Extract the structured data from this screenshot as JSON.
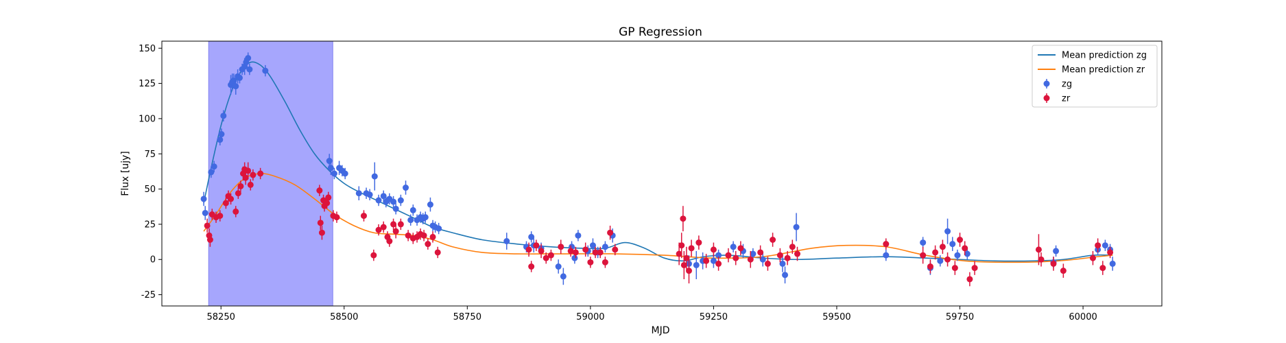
{
  "chart_data": {
    "type": "scatter",
    "title": "GP Regression",
    "xlabel": "MJD",
    "ylabel": "Flux [ujy]",
    "xlim": [
      58130,
      60160
    ],
    "ylim": [
      -33,
      155
    ],
    "x_ticks": [
      58250,
      58500,
      58750,
      59000,
      59250,
      59500,
      59750,
      60000
    ],
    "y_ticks": [
      -25,
      0,
      25,
      50,
      75,
      100,
      125,
      150
    ],
    "grid": false,
    "legend_position": "top-right",
    "shaded_region": {
      "x_start": 58225,
      "x_end": 58477,
      "color": "#a6a6fd"
    },
    "lines": [
      {
        "name": "Mean prediction zg",
        "color": "#1f77b4",
        "x": [
          58215,
          58230,
          58250,
          58270,
          58290,
          58310,
          58330,
          58350,
          58380,
          58410,
          58440,
          58470,
          58500,
          58530,
          58560,
          58590,
          58620,
          58650,
          58680,
          58720,
          58780,
          58850,
          58920,
          58980,
          59030,
          59070,
          59110,
          59150,
          59190,
          59230,
          59280,
          59350,
          59420,
          59500,
          59600,
          59680,
          59750,
          59820,
          59900,
          59960,
          60020,
          60060
        ],
        "y": [
          40,
          65,
          95,
          118,
          133,
          140,
          138,
          130,
          112,
          92,
          75,
          63,
          54,
          48,
          43,
          38,
          33,
          28,
          23,
          19,
          14,
          11,
          9,
          8,
          8,
          12,
          8,
          1,
          -1,
          2,
          3,
          1,
          0,
          1,
          2,
          1,
          0,
          -1,
          -1,
          0,
          3,
          3
        ]
      },
      {
        "name": "Mean prediction zr",
        "color": "#ff7f0e",
        "x": [
          58215,
          58240,
          58270,
          58300,
          58330,
          58360,
          58400,
          58440,
          58480,
          58520,
          58560,
          58600,
          58640,
          58680,
          58720,
          58780,
          58850,
          58950,
          59050,
          59150,
          59250,
          59350,
          59450,
          59520,
          59600,
          59680,
          59760,
          59850,
          59950,
          60030,
          60060
        ],
        "y": [
          20,
          32,
          48,
          58,
          61,
          59,
          53,
          43,
          32,
          24,
          19,
          18,
          17,
          14,
          9,
          5,
          4,
          4,
          4,
          3,
          1,
          2,
          8,
          10,
          9,
          3,
          -1,
          -2,
          -1,
          2,
          3
        ]
      }
    ],
    "series": [
      {
        "name": "zg",
        "color": "#4169e1",
        "points": [
          [
            58215,
            43,
            5
          ],
          [
            58218,
            33,
            5
          ],
          [
            58230,
            62,
            4
          ],
          [
            58236,
            66,
            4
          ],
          [
            58248,
            85,
            4
          ],
          [
            58251,
            89,
            4
          ],
          [
            58255,
            102,
            4
          ],
          [
            58270,
            124,
            7
          ],
          [
            58273,
            126,
            6
          ],
          [
            58276,
            127,
            5
          ],
          [
            58280,
            123,
            6
          ],
          [
            58284,
            130,
            5
          ],
          [
            58288,
            129,
            4
          ],
          [
            58293,
            135,
            4
          ],
          [
            58298,
            137,
            6
          ],
          [
            58301,
            140,
            4
          ],
          [
            58305,
            143,
            4
          ],
          [
            58308,
            135,
            4
          ],
          [
            58340,
            134,
            4
          ],
          [
            58470,
            70,
            5
          ],
          [
            58473,
            65,
            5
          ],
          [
            58480,
            61,
            4
          ],
          [
            58490,
            65,
            5
          ],
          [
            58496,
            63,
            4
          ],
          [
            58502,
            61,
            4
          ],
          [
            58530,
            47,
            5
          ],
          [
            58545,
            47,
            4
          ],
          [
            58552,
            46,
            4
          ],
          [
            58562,
            59,
            10
          ],
          [
            58570,
            42,
            4
          ],
          [
            58580,
            45,
            4
          ],
          [
            58585,
            41,
            4
          ],
          [
            58592,
            43,
            4
          ],
          [
            58600,
            41,
            4
          ],
          [
            58605,
            36,
            4
          ],
          [
            58615,
            42,
            4
          ],
          [
            58625,
            51,
            5
          ],
          [
            58635,
            28,
            4
          ],
          [
            58640,
            35,
            4
          ],
          [
            58648,
            28,
            4
          ],
          [
            58655,
            30,
            4
          ],
          [
            58660,
            29,
            4
          ],
          [
            58665,
            30,
            4
          ],
          [
            58675,
            39,
            5
          ],
          [
            58680,
            24,
            4
          ],
          [
            58685,
            23,
            4
          ],
          [
            58692,
            22,
            4
          ],
          [
            58830,
            13,
            6
          ],
          [
            58870,
            9,
            4
          ],
          [
            58880,
            16,
            4
          ],
          [
            58885,
            10,
            5
          ],
          [
            58900,
            8,
            4
          ],
          [
            58935,
            -5,
            5
          ],
          [
            58945,
            -12,
            6
          ],
          [
            58962,
            9,
            4
          ],
          [
            58968,
            1,
            4
          ],
          [
            58975,
            17,
            4
          ],
          [
            58995,
            6,
            4
          ],
          [
            59005,
            10,
            5
          ],
          [
            59015,
            5,
            4
          ],
          [
            59030,
            9,
            4
          ],
          [
            59045,
            17,
            5
          ],
          [
            59200,
            -3,
            6
          ],
          [
            59215,
            -4,
            10
          ],
          [
            59228,
            -1,
            6
          ],
          [
            59250,
            -1,
            5
          ],
          [
            59260,
            3,
            4
          ],
          [
            59290,
            9,
            4
          ],
          [
            59310,
            6,
            5
          ],
          [
            59330,
            4,
            4
          ],
          [
            59350,
            0,
            5
          ],
          [
            59390,
            -3,
            6
          ],
          [
            59395,
            -11,
            6
          ],
          [
            59418,
            23,
            10
          ],
          [
            59600,
            3,
            4
          ],
          [
            59675,
            12,
            4
          ],
          [
            59690,
            -6,
            5
          ],
          [
            59710,
            -1,
            4
          ],
          [
            59725,
            20,
            9
          ],
          [
            59735,
            11,
            5
          ],
          [
            59745,
            3,
            4
          ],
          [
            59765,
            4,
            4
          ],
          [
            59940,
            -2,
            4
          ],
          [
            59945,
            6,
            4
          ],
          [
            60030,
            7,
            4
          ],
          [
            60045,
            10,
            4
          ],
          [
            60055,
            7,
            4
          ],
          [
            60060,
            -3,
            5
          ]
        ]
      },
      {
        "name": "zr",
        "color": "#dc143c",
        "points": [
          [
            58222,
            24,
            5
          ],
          [
            58226,
            17,
            5
          ],
          [
            58228,
            14,
            5
          ],
          [
            58232,
            32,
            4
          ],
          [
            58240,
            30,
            4
          ],
          [
            58248,
            31,
            4
          ],
          [
            58260,
            40,
            4
          ],
          [
            58265,
            45,
            4
          ],
          [
            58270,
            43,
            4
          ],
          [
            58280,
            34,
            4
          ],
          [
            58285,
            47,
            4
          ],
          [
            58290,
            52,
            4
          ],
          [
            58295,
            61,
            5
          ],
          [
            58298,
            64,
            5
          ],
          [
            58300,
            58,
            5
          ],
          [
            58305,
            63,
            6
          ],
          [
            58310,
            53,
            4
          ],
          [
            58315,
            60,
            4
          ],
          [
            58330,
            61,
            4
          ],
          [
            58450,
            49,
            4
          ],
          [
            58452,
            26,
            5
          ],
          [
            58455,
            19,
            5
          ],
          [
            58458,
            42,
            4
          ],
          [
            58460,
            38,
            4
          ],
          [
            58465,
            40,
            4
          ],
          [
            58468,
            44,
            4
          ],
          [
            58478,
            31,
            4
          ],
          [
            58485,
            30,
            4
          ],
          [
            58540,
            31,
            4
          ],
          [
            58560,
            3,
            4
          ],
          [
            58570,
            21,
            4
          ],
          [
            58580,
            23,
            4
          ],
          [
            58588,
            16,
            4
          ],
          [
            58592,
            13,
            4
          ],
          [
            58600,
            25,
            4
          ],
          [
            58605,
            20,
            5
          ],
          [
            58615,
            25,
            4
          ],
          [
            58630,
            17,
            4
          ],
          [
            58640,
            15,
            4
          ],
          [
            58648,
            16,
            4
          ],
          [
            58655,
            18,
            4
          ],
          [
            58662,
            17,
            4
          ],
          [
            58670,
            11,
            4
          ],
          [
            58680,
            16,
            4
          ],
          [
            58690,
            5,
            4
          ],
          [
            58875,
            7,
            5
          ],
          [
            58880,
            -5,
            4
          ],
          [
            58890,
            10,
            4
          ],
          [
            58900,
            6,
            5
          ],
          [
            58910,
            1,
            4
          ],
          [
            58920,
            3,
            4
          ],
          [
            58940,
            9,
            5
          ],
          [
            58960,
            6,
            4
          ],
          [
            58970,
            5,
            4
          ],
          [
            58990,
            7,
            5
          ],
          [
            59000,
            -2,
            4
          ],
          [
            59010,
            5,
            4
          ],
          [
            59020,
            5,
            4
          ],
          [
            59030,
            -2,
            4
          ],
          [
            59040,
            19,
            5
          ],
          [
            59050,
            7,
            4
          ],
          [
            59180,
            4,
            8
          ],
          [
            59185,
            10,
            9
          ],
          [
            59188,
            29,
            9
          ],
          [
            59190,
            -4,
            10
          ],
          [
            59195,
            1,
            8
          ],
          [
            59200,
            -8,
            9
          ],
          [
            59205,
            8,
            6
          ],
          [
            59220,
            12,
            5
          ],
          [
            59235,
            -1,
            5
          ],
          [
            59250,
            7,
            5
          ],
          [
            59260,
            -3,
            5
          ],
          [
            59280,
            3,
            5
          ],
          [
            59295,
            1,
            5
          ],
          [
            59305,
            8,
            5
          ],
          [
            59325,
            0,
            6
          ],
          [
            59345,
            5,
            5
          ],
          [
            59360,
            -3,
            5
          ],
          [
            59370,
            14,
            5
          ],
          [
            59385,
            3,
            5
          ],
          [
            59400,
            1,
            5
          ],
          [
            59410,
            9,
            5
          ],
          [
            59420,
            4,
            5
          ],
          [
            59600,
            11,
            4
          ],
          [
            59675,
            3,
            6
          ],
          [
            59690,
            -5,
            5
          ],
          [
            59700,
            5,
            5
          ],
          [
            59715,
            9,
            5
          ],
          [
            59725,
            0,
            5
          ],
          [
            59740,
            -6,
            5
          ],
          [
            59750,
            14,
            5
          ],
          [
            59760,
            8,
            5
          ],
          [
            59770,
            -14,
            5
          ],
          [
            59780,
            -6,
            5
          ],
          [
            59910,
            7,
            11
          ],
          [
            59915,
            0,
            5
          ],
          [
            59940,
            -3,
            5
          ],
          [
            59960,
            -8,
            5
          ],
          [
            60020,
            1,
            5
          ],
          [
            60030,
            10,
            5
          ],
          [
            60040,
            -6,
            5
          ],
          [
            60055,
            5,
            4
          ]
        ]
      }
    ]
  }
}
